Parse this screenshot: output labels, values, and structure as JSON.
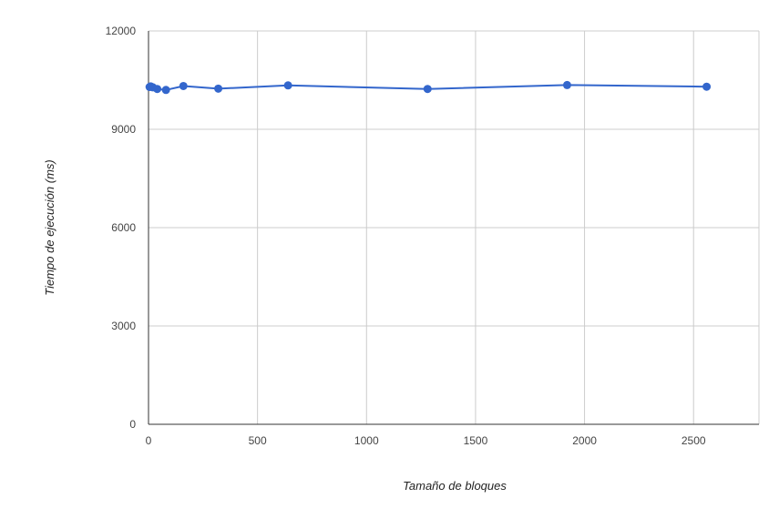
{
  "chart_data": {
    "type": "line",
    "title": "",
    "xlabel": "Tamaño de bloques",
    "ylabel": "Tiempo de ejecución (ms)",
    "xlim": [
      0,
      2800
    ],
    "ylim": [
      0,
      12000
    ],
    "x_ticks": [
      0,
      500,
      1000,
      1500,
      2000,
      2500
    ],
    "y_ticks": [
      0,
      3000,
      6000,
      9000,
      12000
    ],
    "grid": true,
    "legend": "none",
    "colors": {
      "series": "#3366cc",
      "grid": "#cccccc",
      "axis": "#333333"
    },
    "series": [
      {
        "x": [
          5,
          10,
          20,
          40,
          80,
          160,
          320,
          640,
          1280,
          1920,
          2560
        ],
        "values": [
          10290,
          10310,
          10280,
          10230,
          10200,
          10320,
          10240,
          10340,
          10230,
          10350,
          10300
        ]
      }
    ]
  }
}
